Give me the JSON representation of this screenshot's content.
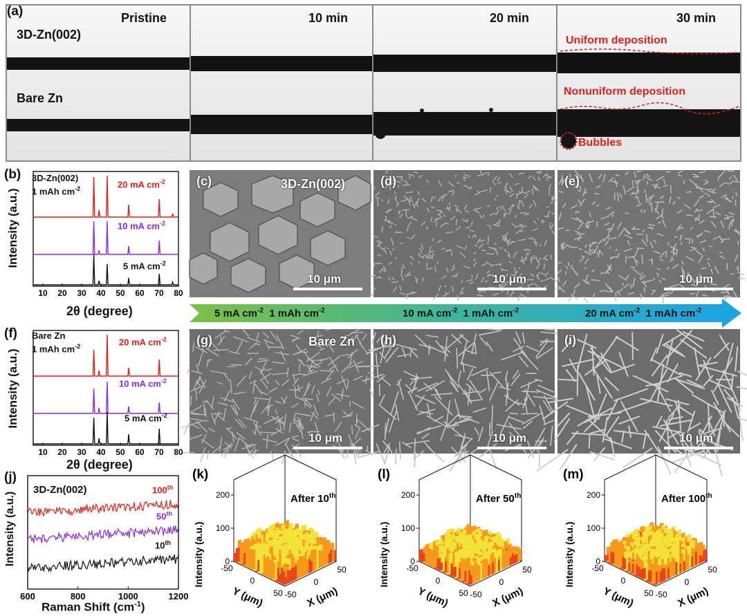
{
  "panel_a": {
    "label": "(a)",
    "time_labels": [
      "Pristine",
      "10 min",
      "20 min",
      "30 min"
    ],
    "row_labels": [
      "3D-Zn(002)",
      "Bare Zn"
    ],
    "annotations": {
      "uniform": "Uniform deposition",
      "nonuniform": "Nonuniform deposition",
      "bubbles": "Bubbles"
    }
  },
  "xrd_b": {
    "label": "(b)",
    "sample": "3D-Zn(002)",
    "capacity": "1 mAh cm",
    "cap_sup": "-2",
    "series": [
      {
        "name": "20 mA cm",
        "sup": "-2",
        "color": "#e0201b"
      },
      {
        "name": "10 mA cm",
        "sup": "-2",
        "color": "#8a2be2"
      },
      {
        "name": "5 mA cm",
        "sup": "-2",
        "color": "#111111"
      }
    ],
    "ylabel": "Intensity (a.u.)",
    "xlabel": "2θ (degree)",
    "xticks": [
      "10",
      "20",
      "30",
      "40",
      "50",
      "60",
      "70",
      "80"
    ]
  },
  "xrd_f": {
    "label": "(f)",
    "sample": "Bare Zn",
    "capacity": "1 mAh cm",
    "cap_sup": "-2",
    "series": [
      {
        "name": "20 mA cm",
        "sup": "-2",
        "color": "#e0201b"
      },
      {
        "name": "10 mA cm",
        "sup": "-2",
        "color": "#8a2be2"
      },
      {
        "name": "5 mA cm",
        "sup": "-2",
        "color": "#111111"
      }
    ],
    "ylabel": "Intensity (a.u.)",
    "xlabel": "2θ (degree)",
    "xticks": [
      "10",
      "20",
      "30",
      "40",
      "50",
      "60",
      "70",
      "80"
    ]
  },
  "sem_top": {
    "labels": [
      "(c)",
      "(d)",
      "(e)"
    ],
    "title": "3D-Zn(002)",
    "scale": "10 μm"
  },
  "sem_bottom": {
    "labels": [
      "(g)",
      "(h)",
      "(i)"
    ],
    "title": "Bare Zn",
    "scale": "10 μm"
  },
  "arrow": {
    "segments": [
      {
        "rate": "5 mA cm",
        "rate_sup": "-2",
        "cap": "1 mAh cm",
        "cap_sup": "-2"
      },
      {
        "rate": "10 mA cm",
        "rate_sup": "-2",
        "cap": "1 mAh cm",
        "cap_sup": "-2"
      },
      {
        "rate": "20 mA cm",
        "rate_sup": "-2",
        "cap": "1 mAh cm",
        "cap_sup": "-2"
      }
    ]
  },
  "raman": {
    "label": "(j)",
    "sample": "3D-Zn(002)",
    "ylabel": "Intensity (a.u.)",
    "xlabel": "Raman Shift (cm",
    "xlabel_sup": "-1",
    "xlabel_end": ")",
    "xticks": [
      "600",
      "800",
      "1000",
      "1200"
    ],
    "series": [
      {
        "name": "100",
        "sup": "th",
        "color": "#e0201b"
      },
      {
        "name": "50",
        "sup": "th",
        "color": "#8a2be2"
      },
      {
        "name": "10",
        "sup": "th",
        "color": "#111111"
      }
    ]
  },
  "maps3d": [
    {
      "label": "(k)",
      "title": "After 10",
      "sup": "th"
    },
    {
      "label": "(l)",
      "title": "After 50",
      "sup": "th"
    },
    {
      "label": "(m)",
      "title": "After 100",
      "sup": "th"
    }
  ],
  "map_axes": {
    "zlabel": "Intensity (a.u.)",
    "zticks": [
      "0",
      "100",
      "200"
    ],
    "xlabel": "X (μm)",
    "ylabel": "Y (μm)",
    "ticks": [
      "-50",
      "0",
      "50"
    ]
  }
}
